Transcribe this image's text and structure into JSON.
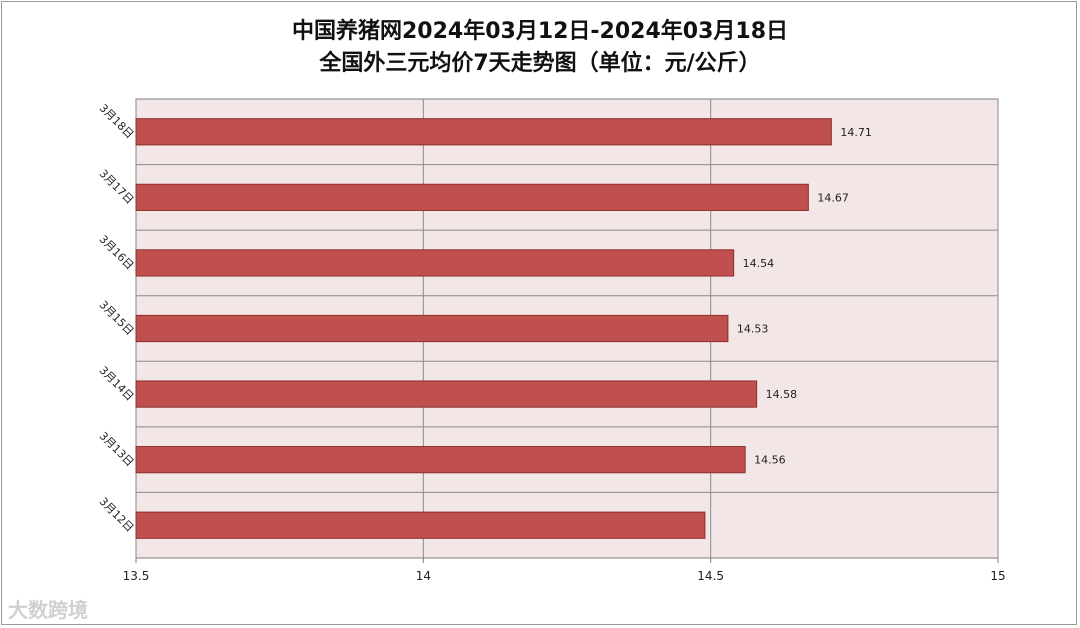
{
  "chart_data": {
    "type": "bar",
    "orientation": "horizontal",
    "title": "中国养猪网2024年03月12日-2024年03月18日",
    "subtitle": "全国外三元均价7天走势图（单位：元/公斤）",
    "categories": [
      "3月18日",
      "3月17日",
      "3月16日",
      "3月15日",
      "3月14日",
      "3月13日",
      "3月12日"
    ],
    "values": [
      14.71,
      14.67,
      14.54,
      14.53,
      14.58,
      14.56,
      14.49
    ],
    "data_labels": [
      "14.71",
      "14.67",
      "14.54",
      "14.53",
      "14.58",
      "14.56",
      ""
    ],
    "xlim": [
      13.5,
      15
    ],
    "x_ticks": [
      "13.5",
      "14",
      "14.5",
      "15"
    ],
    "grid": true,
    "colors": {
      "bar_fill": "#c0504d",
      "bar_stroke": "#8c2f2c",
      "plot_bg": "#f2e6e6",
      "grid": "#8a8a8a"
    }
  },
  "watermark": "大数跨境"
}
